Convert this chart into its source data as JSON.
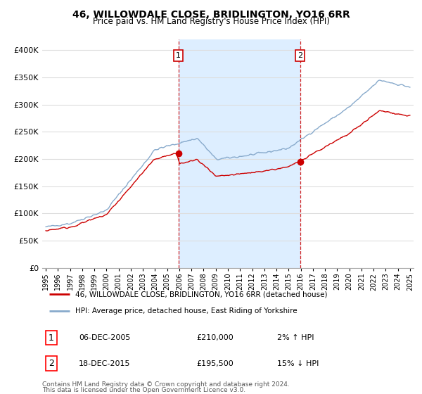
{
  "title": "46, WILLOWDALE CLOSE, BRIDLINGTON, YO16 6RR",
  "subtitle": "Price paid vs. HM Land Registry's House Price Index (HPI)",
  "ylim": [
    0,
    420000
  ],
  "xlim_start": 1994.7,
  "xlim_end": 2025.3,
  "plot_bg_color": "#ffffff",
  "fig_bg_color": "#ffffff",
  "grid_color": "#dddddd",
  "highlight_color": "#ddeeff",
  "sale1_x": 2005.92,
  "sale1_y": 210000,
  "sale1_label": "1",
  "sale2_x": 2015.96,
  "sale2_y": 195500,
  "sale2_label": "2",
  "line_red_color": "#cc0000",
  "line_blue_color": "#88aacc",
  "legend_entry1": "46, WILLOWDALE CLOSE, BRIDLINGTON, YO16 6RR (detached house)",
  "legend_entry2": "HPI: Average price, detached house, East Riding of Yorkshire",
  "table_row1_num": "1",
  "table_row1_date": "06-DEC-2005",
  "table_row1_price": "£210,000",
  "table_row1_hpi": "2% ↑ HPI",
  "table_row2_num": "2",
  "table_row2_date": "18-DEC-2015",
  "table_row2_price": "£195,500",
  "table_row2_hpi": "15% ↓ HPI",
  "footnote_line1": "Contains HM Land Registry data © Crown copyright and database right 2024.",
  "footnote_line2": "This data is licensed under the Open Government Licence v3.0.",
  "vline1_x": 2005.92,
  "vline2_x": 2015.96
}
